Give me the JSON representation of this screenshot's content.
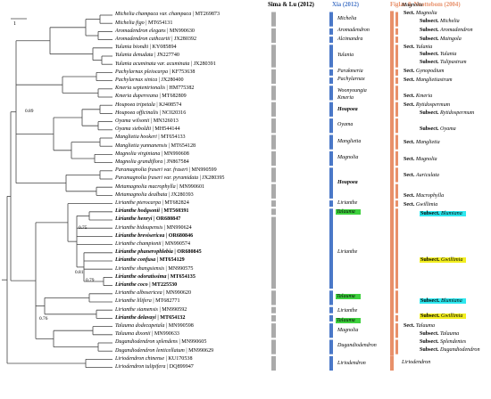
{
  "headers": {
    "sima": "Sima & Lu (2012)",
    "xia": "Xia (2012)",
    "figlar": "Figlar & Noottebom (2004)"
  },
  "colors": {
    "sima": "#aaaaaa",
    "xia": "#4a78c8",
    "figlar": "#e8906a",
    "cyan": "#2ee8f0",
    "yellow": "#f2ee20",
    "green": "#3ed03e"
  },
  "scale_label": "1",
  "taxa": [
    {
      "genus": "Michelia champaca var. champaca",
      "acc": "MT269873",
      "bold": false
    },
    {
      "genus": "Michelia figo",
      "acc": "MT654131",
      "bold": false
    },
    {
      "genus": "Aromadendron elegans",
      "acc": "MN990630",
      "bold": false
    },
    {
      "genus": "Aromadendron cathcartii",
      "acc": "JX280392",
      "bold": false
    },
    {
      "genus": "Yulania biondii",
      "acc": "KY085894",
      "bold": false
    },
    {
      "genus": "Yulania denudata",
      "acc": "JN227740",
      "bold": false
    },
    {
      "genus": "Yulania acuminata var. acuminata",
      "acc": "JX280391",
      "bold": false
    },
    {
      "genus": "Pachylarnax pleiocarpa",
      "acc": "KF753638",
      "bold": false
    },
    {
      "genus": "Pachylarnax sinica",
      "acc": "JX280400",
      "bold": false
    },
    {
      "genus": "Kmeria septentrionalis",
      "acc": "HM775382",
      "bold": false
    },
    {
      "genus": "Kmeria duperreana",
      "acc": "MT682809",
      "bold": false
    },
    {
      "genus": "Houpoea tripetala",
      "acc": "KJ408574",
      "bold": false
    },
    {
      "genus": "Houpoea officinalis",
      "acc": "NC020316",
      "bold": false
    },
    {
      "genus": "Oyama wilsonii",
      "acc": "MN326013",
      "bold": false
    },
    {
      "genus": "Oyama sieboldii",
      "acc": "MH544144",
      "bold": false
    },
    {
      "genus": "Manglietia hookeri",
      "acc": "MT654133",
      "bold": false
    },
    {
      "genus": "Manglietia yunnanensis",
      "acc": "MT654128",
      "bold": false
    },
    {
      "genus": "Magnolia virginiana",
      "acc": "MN990608",
      "bold": false
    },
    {
      "genus": "Magnolia grandiflora",
      "acc": "JN867584",
      "bold": false
    },
    {
      "genus": "Paramagnolia fraseri var. fraseri",
      "acc": "MN990599",
      "bold": false
    },
    {
      "genus": "Paramagnolia fraseri var. pyramidata",
      "acc": "JX280395",
      "bold": false
    },
    {
      "genus": "Metamagnolia macrophylla",
      "acc": "MN990601",
      "bold": false
    },
    {
      "genus": "Metamagnolia dealbata",
      "acc": "JX280393",
      "bold": false
    },
    {
      "genus": "Lirianthe pterocarpa",
      "acc": "MT682824",
      "bold": false
    },
    {
      "genus": "Lirianthe hodgsonii",
      "acc": "MT560391",
      "bold": true
    },
    {
      "genus": "Lirianthe henryi",
      "acc": "OR680847",
      "bold": true
    },
    {
      "genus": "Lirianthe bidoupensis",
      "acc": "MN990624",
      "bold": false
    },
    {
      "genus": "Lirianthe brevisericea",
      "acc": "OR680846",
      "bold": true
    },
    {
      "genus": "Lirianthe championii",
      "acc": "MN990574",
      "bold": false
    },
    {
      "genus": "Lirianthe phanerophlebia",
      "acc": "OR680845",
      "bold": true
    },
    {
      "genus": "Lirianthe confusa",
      "acc": "MT654129",
      "bold": true
    },
    {
      "genus": "Lirianthe shangsiensis",
      "acc": "MN990575",
      "bold": false
    },
    {
      "genus": "Lirianthe odoratissima",
      "acc": "MT654135",
      "bold": true
    },
    {
      "genus": "Lirianthe coco",
      "acc": "MT225530",
      "bold": true
    },
    {
      "genus": "Lirianthe albosericea",
      "acc": "MN990620",
      "bold": false
    },
    {
      "genus": "Lirianthe lilifera",
      "acc": "MT682771",
      "bold": false
    },
    {
      "genus": "Lirianthe siamensis",
      "acc": "MN990592",
      "bold": false
    },
    {
      "genus": "Lirianthe delavayi",
      "acc": "MT654132",
      "bold": true
    },
    {
      "genus": "Talauma dodecapetala",
      "acc": "MN990598",
      "bold": false
    },
    {
      "genus": "Talauma dixonii",
      "acc": "MN990633",
      "bold": false
    },
    {
      "genus": "Dugandiodendron splendens",
      "acc": "MN990605",
      "bold": false
    },
    {
      "genus": "Dugandiodendron lenticellatum",
      "acc": "MN990629",
      "bold": false
    },
    {
      "genus": "Liriodendron chinense",
      "acc": "KU170538",
      "bold": false
    },
    {
      "genus": "Liriodendron tulipifera",
      "acc": "DQ899947",
      "bold": false
    }
  ],
  "support": [
    "0.89",
    "0.75",
    "0.81",
    "0.79",
    "0.76"
  ],
  "xia_labels": [
    {
      "text": "Michelia"
    },
    {
      "text": "Aromadendron"
    },
    {
      "text": "Alcimandra"
    },
    {
      "text": "Yulania"
    },
    {
      "text": "Parakmeria"
    },
    {
      "text": "Pachylarnax"
    },
    {
      "text": "Woonyoungia"
    },
    {
      "text": "Kmeria"
    },
    {
      "text": "Houpoea"
    },
    {
      "text": "Oyama"
    },
    {
      "text": "Manglietia"
    },
    {
      "text": "Magnolia"
    },
    {
      "text": "Houpoea"
    },
    {
      "text": "Lirianthe"
    },
    {
      "text": "Talauma"
    },
    {
      "text": "Lirianthe"
    },
    {
      "text": "Talauma"
    },
    {
      "text": "Lirianthe"
    },
    {
      "text": "Talauma"
    },
    {
      "text": "Magnolia"
    },
    {
      "text": "Dugandiodendron"
    },
    {
      "text": "Liriodendron"
    }
  ],
  "figlar_labels": [
    {
      "s": "",
      "n": "Magnolia"
    },
    {
      "s": "Sect.",
      "n": "Magnolia"
    },
    {
      "s": "Subsect.",
      "n": "Michelia"
    },
    {
      "s": "Subsect.",
      "n": "Aromadendron"
    },
    {
      "s": "Subsect.",
      "n": "Maingola"
    },
    {
      "s": "Sect.",
      "n": "Yulania"
    },
    {
      "s": "Subsect.",
      "n": "Yulania"
    },
    {
      "s": "Subsect.",
      "n": "Tulipastrum"
    },
    {
      "s": "Sect.",
      "n": "Gynopodium"
    },
    {
      "s": "Sect.",
      "n": "Manglietiastrum"
    },
    {
      "s": "Sect.",
      "n": "Kmeria"
    },
    {
      "s": "Sect.",
      "n": "Rytidospermum"
    },
    {
      "s": "Subsect.",
      "n": "Rytidospermum"
    },
    {
      "s": "Subsect.",
      "n": "Oyama"
    },
    {
      "s": "Sect.",
      "n": "Manglietia"
    },
    {
      "s": "Sect.",
      "n": "Magnolia"
    },
    {
      "s": "Sect.",
      "n": "Auriculata"
    },
    {
      "s": "Sect.",
      "n": "Macrophylla"
    },
    {
      "s": "Sect.",
      "n": "Gwillimia"
    },
    {
      "s": "Subsect.",
      "n": "Blumiana"
    },
    {
      "s": "Subsect.",
      "n": "Gwillimia"
    },
    {
      "s": "Subsect.",
      "n": "Blumiana"
    },
    {
      "s": "Subsect.",
      "n": "Gwillimia"
    },
    {
      "s": "Sect.",
      "n": "Talauma"
    },
    {
      "s": "Subsect.",
      "n": "Talauma"
    },
    {
      "s": "Subsect.",
      "n": "Splendentes"
    },
    {
      "s": "Subsect.",
      "n": "Dugandiodendron"
    },
    {
      "s": "",
      "n": "Liriodendron"
    }
  ]
}
